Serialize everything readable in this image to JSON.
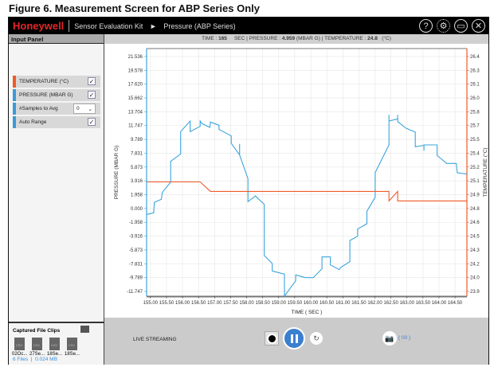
{
  "figure_title": "Figure 6. Measurement Screen for ABP Series Only",
  "titlebar": {
    "brand": "Honeywell",
    "app": "Sensor Evaluation Kit",
    "arrow": "►",
    "page": "Pressure (ABP Series)"
  },
  "window_icons": [
    "help-icon",
    "settings-icon",
    "maximize-icon",
    "close-icon"
  ],
  "left_panel": {
    "title": "Input Panel",
    "controls": [
      {
        "label": "TEMPERATURE (°C)",
        "checked": true,
        "color": "#f05a28"
      },
      {
        "label": "PRESSURE (MBAR G)",
        "checked": true,
        "color": "#3a9ad9"
      },
      {
        "label": "#Samples to Avg",
        "value": "0",
        "color": "#3a9ad9"
      },
      {
        "label": "Auto Range",
        "checked": true,
        "color": "#3a9ad9"
      }
    ],
    "check_mark": "✓",
    "clips": {
      "title": "Captured File Clips",
      "files": [
        "02Oc...",
        "27Se...",
        "18Se...",
        "18Se..."
      ],
      "file_type": "CSV",
      "count": "6 Files",
      "separator": "|",
      "size": "0.024 MB"
    }
  },
  "status": {
    "time_label": "TIME :",
    "time": "165",
    "time_unit": "SEC |",
    "pressure_label": "PRESSURE :",
    "pressure": "4.959",
    "pressure_unit": "(MBAR G) |",
    "temp_label": "TEMPERATURE :",
    "temp": "24.8",
    "temp_unit": "(°C)"
  },
  "bottom": {
    "live": "LIVE STREAMING",
    "capture_count": "( 00 )"
  },
  "colors": {
    "pressure": "#3aa5dd",
    "temperature": "#f05a28"
  },
  "chart_data": {
    "type": "line",
    "xlabel": "TIME ( SEC )",
    "ylabel": "PRESSURE   (MBAR G)",
    "y2label": "TEMPERATURE (°C)",
    "xlim": [
      154.88,
      164.87
    ],
    "ylim": [
      -12.42,
      22.66
    ],
    "y2lim": [
      23.87,
      26.47
    ],
    "x_ticks": [
      "155.00",
      "155.50",
      "156.00",
      "156.50",
      "157.00",
      "157.50",
      "158.00",
      "158.50",
      "159.00",
      "159.50",
      "160.00",
      "160.50",
      "161.00",
      "161.50",
      "162.00",
      "162.50",
      "163.00",
      "163.50",
      "164.00",
      "164.50"
    ],
    "y_ticks": [
      "21.536",
      "19.578",
      "17.620",
      "15.662",
      "13.704",
      "11.747",
      "9.789",
      "7.831",
      "5.873",
      "3.916",
      "1.958",
      "0.000",
      "-1.958",
      "-3.916",
      "-5.873",
      "-7.831",
      "-9.789",
      "-11.747"
    ],
    "y2_ticks": [
      "26.4",
      "26.3",
      "26.1",
      "26.0",
      "25.8",
      "25.7",
      "25.5",
      "25.4",
      "25.2",
      "25.1",
      "24.9",
      "24.8",
      "24.6",
      "24.5",
      "24.3",
      "24.2",
      "24.0",
      "23.9"
    ],
    "grid": true,
    "series": [
      {
        "name": "PRESSURE (MBAR G)",
        "axis": "left",
        "points": [
          [
            154.89,
            -0.84
          ],
          [
            155.1,
            -0.62
          ],
          [
            155.12,
            0.88
          ],
          [
            155.34,
            1.3
          ],
          [
            155.37,
            2.28
          ],
          [
            155.63,
            3.74
          ],
          [
            155.63,
            6.68
          ],
          [
            155.94,
            7.73
          ],
          [
            155.94,
            10.89
          ],
          [
            156.24,
            12.4
          ],
          [
            156.24,
            10.89
          ],
          [
            156.55,
            11.64
          ],
          [
            156.55,
            12.4
          ],
          [
            156.61,
            12.02
          ],
          [
            156.85,
            11.49
          ],
          [
            156.87,
            12.25
          ],
          [
            157.14,
            11.8
          ],
          [
            157.14,
            11.2
          ],
          [
            157.52,
            10.29
          ],
          [
            157.52,
            9.24
          ],
          [
            157.78,
            7.58
          ],
          [
            157.78,
            9.16
          ],
          [
            157.78,
            7.58
          ],
          [
            158.04,
            4.24
          ],
          [
            158.04,
            0.97
          ],
          [
            158.28,
            1.79
          ],
          [
            158.31,
            1.6
          ],
          [
            158.55,
            0.59
          ],
          [
            158.55,
            -6.67
          ],
          [
            158.8,
            -7.8
          ],
          [
            158.8,
            -8.85
          ],
          [
            159.18,
            -9.3
          ],
          [
            159.18,
            -12.42
          ],
          [
            159.53,
            -10.24
          ],
          [
            159.53,
            -9.42
          ],
          [
            159.83,
            -9.79
          ],
          [
            160.08,
            -9.79
          ],
          [
            160.35,
            -8.55
          ],
          [
            160.35,
            -6.86
          ],
          [
            160.61,
            -6.86
          ],
          [
            160.61,
            -7.99
          ],
          [
            160.89,
            -8.66
          ],
          [
            160.93,
            -8.36
          ],
          [
            161.22,
            -7.54
          ],
          [
            161.22,
            -4.53
          ],
          [
            161.46,
            -3.93
          ],
          [
            161.46,
            -2.91
          ],
          [
            161.75,
            -2.16
          ],
          [
            161.75,
            -0.39
          ],
          [
            162.01,
            1.6
          ],
          [
            162.01,
            5.1
          ],
          [
            162.44,
            9.01
          ],
          [
            162.44,
            13.26
          ],
          [
            162.44,
            12.4
          ],
          [
            162.71,
            12.7
          ],
          [
            162.71,
            13.26
          ],
          [
            162.71,
            12.32
          ],
          [
            162.97,
            11.38
          ],
          [
            163.26,
            10.82
          ],
          [
            163.26,
            8.75
          ],
          [
            163.53,
            8.94
          ],
          [
            163.53,
            8.19
          ],
          [
            163.53,
            9.01
          ],
          [
            163.94,
            9.01
          ],
          [
            163.94,
            7.51
          ],
          [
            164.24,
            6.38
          ],
          [
            164.54,
            6.38
          ],
          [
            164.57,
            5.06
          ],
          [
            164.87,
            4.88
          ]
        ]
      },
      {
        "name": "TEMPERATURE (°C)",
        "axis": "right",
        "points": [
          [
            154.89,
            25.07
          ],
          [
            156.55,
            25.07
          ],
          [
            156.87,
            24.97
          ],
          [
            162.44,
            24.97
          ],
          [
            162.44,
            24.87
          ],
          [
            162.71,
            24.97
          ],
          [
            162.71,
            24.87
          ],
          [
            164.87,
            24.87
          ]
        ]
      }
    ]
  }
}
